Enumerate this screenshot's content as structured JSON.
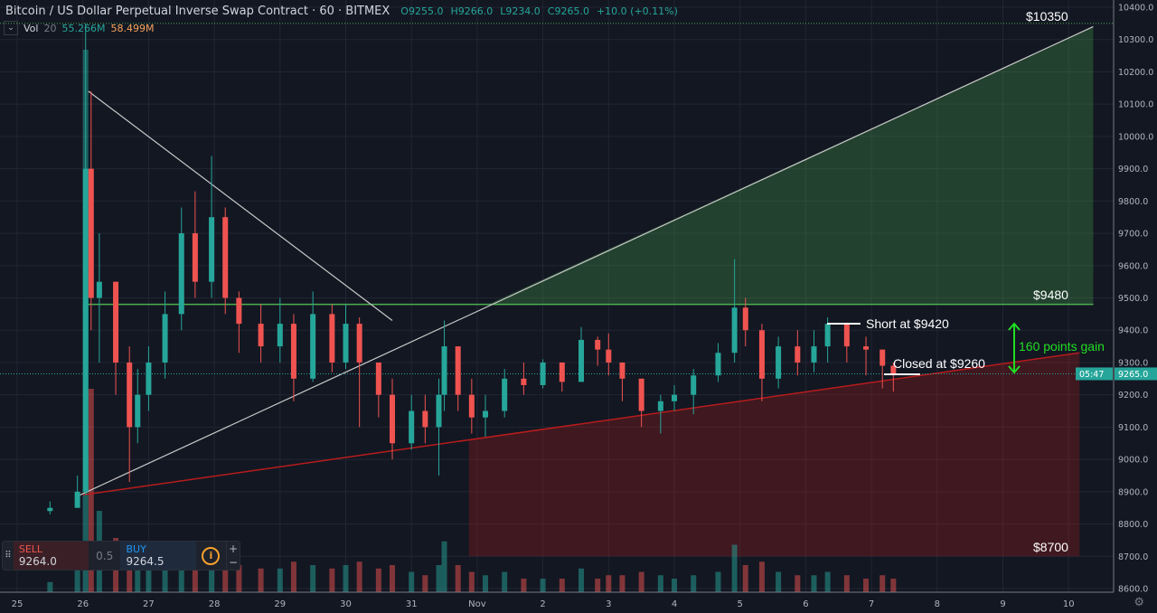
{
  "header": {
    "symbol": "Bitcoin / US Dollar Perpetual Inverse Swap Contract · 60 · BITMEX",
    "open": "O9255.0",
    "high": "H9266.0",
    "low": "L9234.0",
    "close": "C9265.0",
    "change": "+10.0 (+0.11%)",
    "vol_label": "Vol",
    "vol_len": "20",
    "vol_value": "55.266M",
    "vol_ma": "58.499M"
  },
  "trade_panel": {
    "sell_label": "SELL",
    "sell_price": "9264.0",
    "spread": "0.5",
    "buy_label": "BUY",
    "buy_price": "9264.5",
    "info_icon": "i",
    "plus": "+",
    "minus": "−"
  },
  "price_axis": {
    "last_price": "9265.0",
    "countdown": "05:47"
  },
  "colors": {
    "background": "#131722",
    "up": "#26a69a",
    "down": "#ef5350",
    "grid": "#222633",
    "green_line": "#4caf50",
    "red_line": "#b71c1c"
  },
  "chart_data": {
    "type": "candlestick",
    "ylim": [
      8600,
      10400
    ],
    "y_ticks": [
      "8600.0",
      "8700.0",
      "8800.0",
      "8900.0",
      "9000.0",
      "9100.0",
      "9200.0",
      "9300.0",
      "9400.0",
      "9500.0",
      "9600.0",
      "9700.0",
      "9800.0",
      "9900.0",
      "10000.0",
      "10100.0",
      "10200.0",
      "10300.0",
      "10400.0"
    ],
    "x_ticks": [
      {
        "t": "10-25 00:00",
        "label": "25"
      },
      {
        "t": "10-26 00:00",
        "label": "26"
      },
      {
        "t": "10-27 00:00",
        "label": "27"
      },
      {
        "t": "10-28 00:00",
        "label": "28"
      },
      {
        "t": "10-29 00:00",
        "label": "29"
      },
      {
        "t": "10-30 00:00",
        "label": "30"
      },
      {
        "t": "10-31 00:00",
        "label": "31"
      },
      {
        "t": "11-01 00:00",
        "label": "Nov"
      },
      {
        "t": "11-02 00:00",
        "label": "2"
      },
      {
        "t": "11-03 00:00",
        "label": "3"
      },
      {
        "t": "11-04 00:00",
        "label": "4"
      },
      {
        "t": "11-05 00:00",
        "label": "5"
      },
      {
        "t": "11-06 00:00",
        "label": "6"
      },
      {
        "t": "11-07 00:00",
        "label": "7"
      },
      {
        "t": "11-08 00:00",
        "label": "8"
      },
      {
        "t": "11-09 00:00",
        "label": "9"
      },
      {
        "t": "11-10 00:00",
        "label": "10"
      }
    ],
    "grid": true,
    "candles": [
      [
        "10-25 12:00",
        8840,
        8870,
        8830,
        8850,
        15
      ],
      [
        "10-25 22:00",
        8850,
        8950,
        8850,
        8900,
        60
      ],
      [
        "10-26 01:00",
        8900,
        10350,
        8890,
        9900,
        800
      ],
      [
        "10-26 03:00",
        9900,
        10140,
        9400,
        9500,
        300
      ],
      [
        "10-26 06:00",
        9500,
        9700,
        9300,
        9550,
        120
      ],
      [
        "10-26 12:00",
        9550,
        9550,
        9200,
        9300,
        80
      ],
      [
        "10-26 17:00",
        9300,
        9350,
        8930,
        9100,
        70
      ],
      [
        "10-26 20:00",
        9100,
        9280,
        9050,
        9200,
        50
      ],
      [
        "10-27 00:00",
        9200,
        9350,
        9150,
        9300,
        45
      ],
      [
        "10-27 06:00",
        9300,
        9520,
        9250,
        9450,
        60
      ],
      [
        "10-27 12:00",
        9450,
        9780,
        9400,
        9700,
        75
      ],
      [
        "10-27 17:00",
        9700,
        9830,
        9500,
        9550,
        55
      ],
      [
        "10-27 23:00",
        9550,
        9940,
        9500,
        9750,
        70
      ],
      [
        "10-28 04:00",
        9750,
        9780,
        9450,
        9500,
        55
      ],
      [
        "10-28 09:00",
        9500,
        9520,
        9330,
        9420,
        40
      ],
      [
        "10-28 17:00",
        9420,
        9480,
        9300,
        9350,
        35
      ],
      [
        "10-29 00:00",
        9350,
        9500,
        9300,
        9420,
        35
      ],
      [
        "10-29 05:00",
        9420,
        9450,
        9180,
        9250,
        45
      ],
      [
        "10-29 12:00",
        9250,
        9520,
        9240,
        9450,
        40
      ],
      [
        "10-29 19:00",
        9450,
        9480,
        9270,
        9300,
        35
      ],
      [
        "10-30 00:00",
        9300,
        9480,
        9280,
        9420,
        40
      ],
      [
        "10-30 05:00",
        9420,
        9440,
        9100,
        9300,
        45
      ],
      [
        "10-30 12:00",
        9300,
        9300,
        9130,
        9200,
        35
      ],
      [
        "10-30 17:00",
        9200,
        9250,
        9000,
        9050,
        40
      ],
      [
        "10-31 00:00",
        9050,
        9200,
        9030,
        9150,
        30
      ],
      [
        "10-31 05:00",
        9150,
        9200,
        9050,
        9100,
        25
      ],
      [
        "10-31 10:00",
        9100,
        9250,
        8950,
        9200,
        40
      ],
      [
        "10-31 12:00",
        9200,
        9430,
        9150,
        9350,
        75
      ],
      [
        "10-31 17:00",
        9350,
        9350,
        9150,
        9200,
        40
      ],
      [
        "10-31 22:00",
        9200,
        9250,
        9080,
        9130,
        30
      ],
      [
        "11-01 03:00",
        9130,
        9200,
        9070,
        9150,
        25
      ],
      [
        "11-01 10:00",
        9150,
        9280,
        9130,
        9250,
        30
      ],
      [
        "11-01 17:00",
        9250,
        9300,
        9200,
        9230,
        20
      ],
      [
        "11-02 00:00",
        9230,
        9310,
        9220,
        9300,
        20
      ],
      [
        "11-02 07:00",
        9300,
        9300,
        9210,
        9240,
        20
      ],
      [
        "11-02 14:00",
        9240,
        9410,
        9240,
        9370,
        35
      ],
      [
        "11-02 20:00",
        9370,
        9380,
        9290,
        9340,
        20
      ],
      [
        "11-03 00:00",
        9340,
        9390,
        9260,
        9300,
        25
      ],
      [
        "11-03 05:00",
        9300,
        9300,
        9180,
        9250,
        25
      ],
      [
        "11-03 12:00",
        9250,
        9250,
        9100,
        9150,
        30
      ],
      [
        "11-03 19:00",
        9150,
        9200,
        9080,
        9180,
        25
      ],
      [
        "11-04 00:00",
        9180,
        9230,
        9150,
        9200,
        20
      ],
      [
        "11-04 07:00",
        9200,
        9280,
        9140,
        9260,
        25
      ],
      [
        "11-04 16:00",
        9260,
        9360,
        9240,
        9330,
        30
      ],
      [
        "11-04 22:00",
        9330,
        9620,
        9300,
        9470,
        70
      ],
      [
        "11-05 02:00",
        9470,
        9500,
        9350,
        9400,
        40
      ],
      [
        "11-05 08:00",
        9400,
        9420,
        9180,
        9250,
        45
      ],
      [
        "11-05 14:00",
        9250,
        9380,
        9220,
        9350,
        30
      ],
      [
        "11-05 21:00",
        9350,
        9400,
        9260,
        9300,
        25
      ],
      [
        "11-06 03:00",
        9300,
        9400,
        9270,
        9350,
        25
      ],
      [
        "11-06 08:00",
        9350,
        9440,
        9300,
        9420,
        30
      ],
      [
        "11-06 15:00",
        9420,
        9420,
        9300,
        9350,
        25
      ],
      [
        "11-06 22:00",
        9350,
        9380,
        9260,
        9340,
        20
      ],
      [
        "11-07 04:00",
        9340,
        9340,
        9220,
        9290,
        25
      ],
      [
        "11-07 08:00",
        9290,
        9300,
        9210,
        9265,
        20
      ]
    ],
    "drawings": {
      "descending_trendline": [
        [
          "10-26 02:00",
          10140
        ],
        [
          "10-30 17:00",
          9430
        ]
      ],
      "ascending_trendline": [
        [
          "10-25 23:00",
          8890
        ],
        [
          "11-10 09:00",
          10340
        ]
      ],
      "support_line": [
        [
          "10-26 00:00",
          8890
        ],
        [
          "11-10 04:00",
          9330
        ]
      ],
      "resistance_9480": [
        [
          "10-26 00:00",
          9480
        ],
        [
          "11-10 09:00",
          9480
        ]
      ],
      "target_line_10350": 10350,
      "current_price_line": 9265,
      "green_zone": [
        [
          "11-01 04:00",
          9480
        ],
        [
          "11-10 09:00",
          10340
        ],
        [
          "11-10 09:00",
          9480
        ]
      ],
      "red_zone": {
        "from": "10-31 21:00",
        "to": "11-10 04:00",
        "bottom": 8700
      }
    },
    "annotations": {
      "label_10350": "$10350",
      "label_9480": "$9480",
      "label_8700": "$8700",
      "short": "Short at $9420",
      "closed": "Closed at $9260",
      "gain": "160 points gain"
    }
  }
}
